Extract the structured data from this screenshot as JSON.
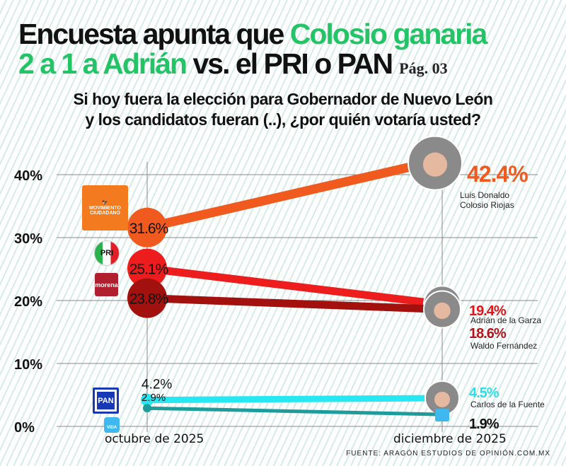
{
  "header": {
    "title_black_1": "Encuesta apunta que ",
    "title_green_1": "Colosio ganaria",
    "title_green_2": "2 a 1 a Adrián",
    "title_black_2": " vs. el PRI o PAN",
    "page_ref": "Pág. 03",
    "subtitle_1": "Si hoy fuera la elección para Gobernador de Nuevo León",
    "subtitle_2": "y los candidatos fueran (..), ¿por quién votaría usted?"
  },
  "source": "FUENTE: ARAGÓN ESTUDIOS DE OPINIÓN.COM.MX",
  "logos": {
    "mc": "MOVIMIENTO CIUDADANO",
    "pri": "PRI",
    "morena": "morena",
    "pan": "PAN",
    "vida": "VIDA"
  },
  "chart_data": {
    "type": "line",
    "categories": [
      "octubre de 2025",
      "diciembre de 2025"
    ],
    "ylim": [
      0,
      40
    ],
    "yticks": [
      "0%",
      "10%",
      "20%",
      "30%",
      "40%"
    ],
    "grid": true,
    "series": [
      {
        "party": "Movimiento Ciudadano",
        "candidate": "Luis Donaldo Colosio Riojas",
        "values": [
          31.6,
          42.4
        ],
        "labels": [
          "31.6%",
          "42.4%"
        ],
        "color": "#f05a1e"
      },
      {
        "party": "PRI",
        "candidate": "Adrián de la Garza",
        "values": [
          25.1,
          19.4
        ],
        "labels": [
          "25.1%",
          "19.4%"
        ],
        "color": "#ee1d1d"
      },
      {
        "party": "Morena",
        "candidate": "Waldo Fernández",
        "values": [
          23.8,
          18.6
        ],
        "labels": [
          "23.8%",
          "18.6%"
        ],
        "color": "#a3110f"
      },
      {
        "party": "PAN",
        "candidate": "Carlos de la Fuente",
        "values": [
          4.2,
          4.5
        ],
        "labels": [
          "4.2%",
          "4.5%"
        ],
        "color": "#27e8f2"
      },
      {
        "party": "Vida",
        "candidate": "",
        "values": [
          2.9,
          1.9
        ],
        "labels": [
          "2.9%",
          "1.9%"
        ],
        "color": "#1e9c9c"
      }
    ]
  }
}
